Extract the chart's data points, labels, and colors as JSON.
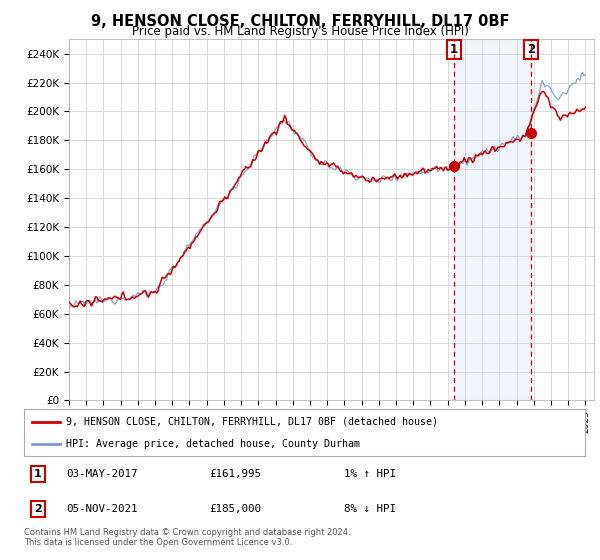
{
  "title": "9, HENSON CLOSE, CHILTON, FERRYHILL, DL17 0BF",
  "subtitle": "Price paid vs. HM Land Registry's House Price Index (HPI)",
  "title_fontsize": 10.5,
  "subtitle_fontsize": 8.5,
  "ylim": [
    0,
    250000
  ],
  "yticks": [
    0,
    20000,
    40000,
    60000,
    80000,
    100000,
    120000,
    140000,
    160000,
    180000,
    200000,
    220000,
    240000
  ],
  "ytick_labels": [
    "£0",
    "£20K",
    "£40K",
    "£60K",
    "£80K",
    "£100K",
    "£120K",
    "£140K",
    "£160K",
    "£180K",
    "£200K",
    "£220K",
    "£240K"
  ],
  "hpi_color": "#7799cc",
  "price_color": "#cc0000",
  "marker_color": "#cc0000",
  "sale1_year": 2017.35,
  "sale1_price": 161995,
  "sale1_label": "1",
  "sale1_date": "03-MAY-2017",
  "sale1_price_str": "£161,995",
  "sale1_hpi": "1% ↑ HPI",
  "sale2_year": 2021.84,
  "sale2_price": 185000,
  "sale2_label": "2",
  "sale2_date": "05-NOV-2021",
  "sale2_price_str": "£185,000",
  "sale2_hpi": "8% ↓ HPI",
  "legend_line1": "9, HENSON CLOSE, CHILTON, FERRYHILL, DL17 0BF (detached house)",
  "legend_line2": "HPI: Average price, detached house, County Durham",
  "footnote": "Contains HM Land Registry data © Crown copyright and database right 2024.\nThis data is licensed under the Open Government Licence v3.0.",
  "bg_color": "#ffffff",
  "grid_color": "#cccccc",
  "shade_color": "#ddeeff"
}
